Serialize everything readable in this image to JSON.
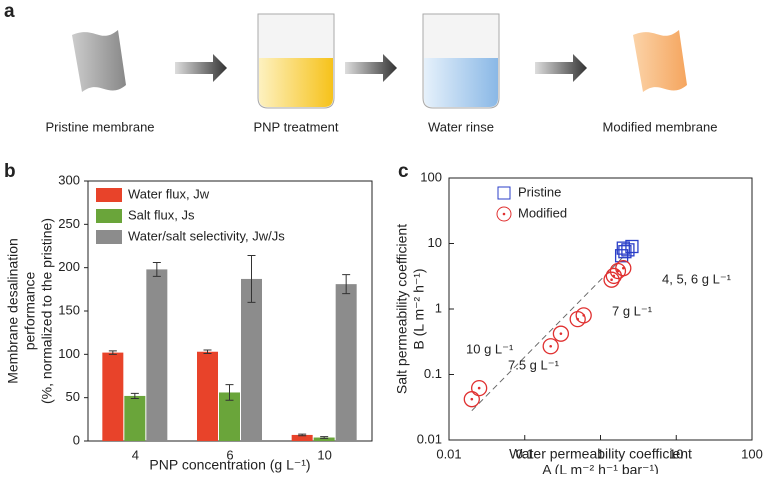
{
  "panel_labels": [
    "a",
    "b",
    "c"
  ],
  "diagram": {
    "steps": [
      "Pristine membrane",
      "PNP treatment",
      "Water rinse",
      "Modified membrane"
    ]
  },
  "chart_data": [
    {
      "type": "bar",
      "ylabel": [
        "Membrane desalination",
        "performance",
        "(%, normalized to the pristine)"
      ],
      "xlabel": "PNP concentration (g L⁻¹)",
      "categories": [
        "4",
        "6",
        "10"
      ],
      "series": [
        {
          "name": "Water flux, Jw",
          "color": "#e8432a",
          "values": [
            102,
            103,
            7
          ],
          "errors": [
            2,
            2,
            1
          ]
        },
        {
          "name": "Salt flux, Js",
          "color": "#6aa53a",
          "values": [
            52,
            56,
            4
          ],
          "errors": [
            3,
            9,
            1
          ]
        },
        {
          "name": "Water/salt selectivity, Jw/Js",
          "color": "#8c8c8c",
          "values": [
            198,
            187,
            181
          ],
          "errors": [
            8,
            27,
            11
          ]
        }
      ],
      "ylim": [
        0,
        300
      ],
      "yticks": [
        0,
        50,
        100,
        150,
        200,
        250,
        300
      ],
      "legend": "top-left"
    },
    {
      "type": "scatter",
      "log_scale": true,
      "xlabel": [
        "Water permeability coefficient",
        "A (L m⁻² h⁻¹ bar⁻¹)"
      ],
      "ylabel": [
        "Salt permeability coefficient",
        "B (L m⁻² h⁻¹)"
      ],
      "series": [
        {
          "name": "Pristine",
          "color": "#2b3fc8",
          "marker": "square",
          "x": [
            1.9,
            2.1,
            2.3,
            2.6,
            2.0
          ],
          "values": [
            6.5,
            7.5,
            8,
            9,
            8.5
          ]
        },
        {
          "name": "Modified",
          "color": "#e03030",
          "marker": "circle",
          "x": [
            0.02,
            0.025,
            0.22,
            0.3,
            0.5,
            0.6,
            1.4,
            1.5,
            1.7,
            2.0
          ],
          "values": [
            0.042,
            0.062,
            0.27,
            0.42,
            0.7,
            0.8,
            2.8,
            3.2,
            3.8,
            4.2
          ]
        }
      ],
      "fit_line": {
        "x": [
          0.02,
          2.2
        ],
        "values": [
          0.028,
          7
        ]
      },
      "annotations": [
        "10 g L⁻¹",
        "7.5 g L⁻¹",
        "7 g L⁻¹",
        "4, 5, 6 g L⁻¹"
      ],
      "xlim": [
        0.01,
        100
      ],
      "ylim": [
        0.01,
        100
      ],
      "xticks": [
        0.01,
        0.1,
        1,
        10,
        100
      ],
      "yticks": [
        0.01,
        0.1,
        1,
        10,
        100
      ],
      "legend": "top-left"
    }
  ]
}
